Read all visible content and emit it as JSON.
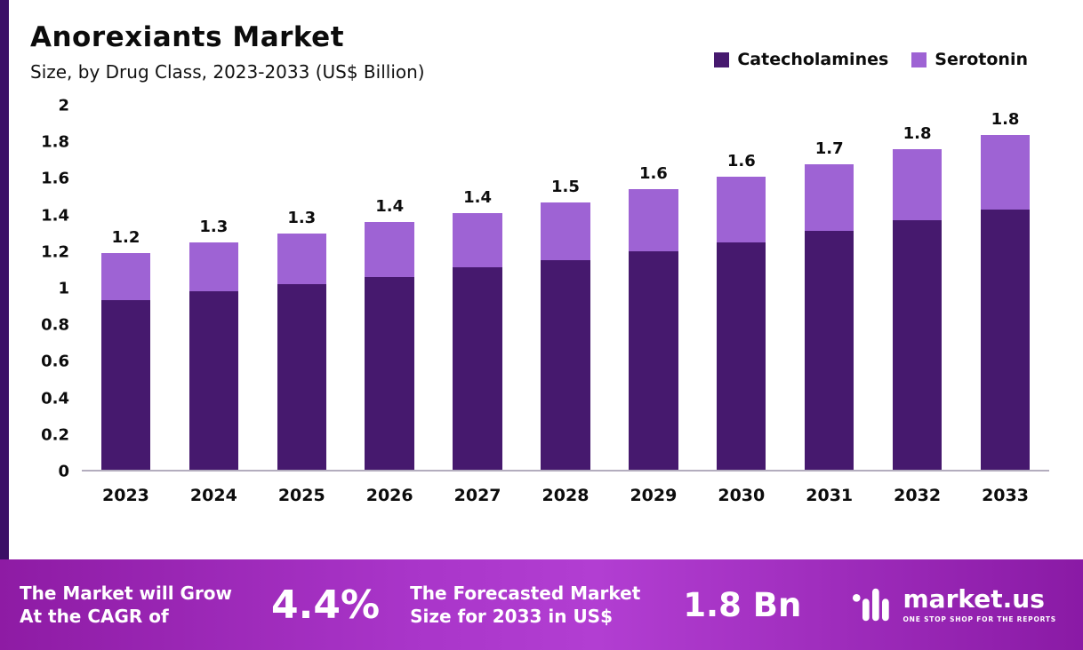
{
  "header": {
    "title": "Anorexiants Market",
    "subtitle": "Size, by Drug Class, 2023-2033 (US$ Billion)"
  },
  "chart_data": {
    "type": "bar",
    "stacked": true,
    "title": "Anorexiants Market Size, by Drug Class, 2023-2033 (US$ Billion)",
    "categories": [
      "2023",
      "2024",
      "2025",
      "2026",
      "2027",
      "2028",
      "2029",
      "2030",
      "2031",
      "2032",
      "2033"
    ],
    "series": [
      {
        "name": "Catecholamines",
        "color": "#46196e",
        "values": [
          0.93,
          0.98,
          1.02,
          1.06,
          1.11,
          1.15,
          1.2,
          1.25,
          1.31,
          1.37,
          1.43
        ]
      },
      {
        "name": "Serotonin",
        "color": "#9e63d4",
        "values": [
          0.26,
          0.27,
          0.28,
          0.3,
          0.3,
          0.32,
          0.34,
          0.36,
          0.37,
          0.39,
          0.41
        ]
      }
    ],
    "totals_labels": [
      "1.2",
      "1.3",
      "1.3",
      "1.4",
      "1.4",
      "1.5",
      "1.6",
      "1.6",
      "1.7",
      "1.8",
      "1.8"
    ],
    "ylim": [
      0,
      2
    ],
    "yticks": [
      "2",
      "1.8",
      "1.6",
      "1.4",
      "1.2",
      "1",
      "0.8",
      "0.6",
      "0.4",
      "0.2",
      "0"
    ],
    "grid": false,
    "legend_position": "top-right"
  },
  "footer": {
    "cagr_text": "The Market will Grow\nAt the CAGR of",
    "cagr_value": "4.4%",
    "forecast_text": "The Forecasted Market\nSize for 2033 in US$",
    "forecast_value": "1.8 Bn",
    "brand": "market.us",
    "brand_tagline": "ONE STOP SHOP FOR THE REPORTS"
  }
}
